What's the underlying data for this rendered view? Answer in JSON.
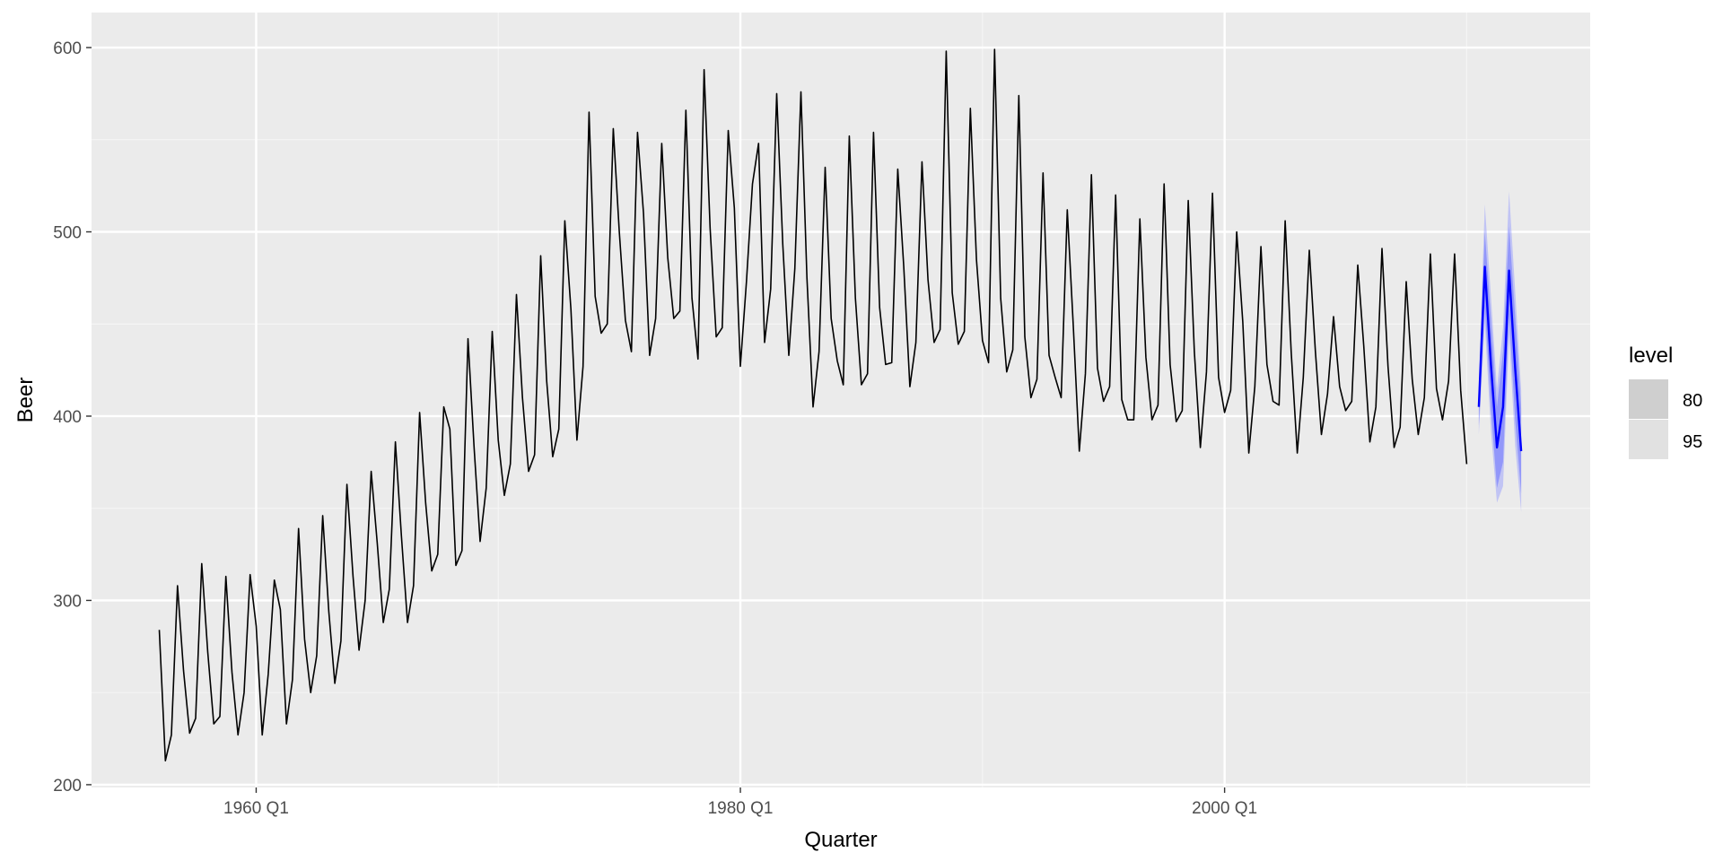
{
  "chart_data": {
    "type": "line",
    "xlabel": "Quarter",
    "ylabel": "Beer",
    "x_tick_labels": [
      "1960 Q1",
      "1980 Q1",
      "2000 Q1"
    ],
    "x_ticks": [
      1960,
      1980,
      2000
    ],
    "y_tick_labels": [
      "200",
      "300",
      "400",
      "500",
      "600"
    ],
    "y_ticks": [
      200,
      300,
      400,
      500,
      600
    ],
    "xlim": [
      1953.2,
      2015.1
    ],
    "ylim": [
      198.5,
      619
    ],
    "grid": true,
    "legend": {
      "title": "level",
      "placement": "right",
      "entries": [
        {
          "label": "80",
          "color": "#cfcfcf"
        },
        {
          "label": "95",
          "color": "#e1e1e1"
        }
      ]
    },
    "series": [
      {
        "color": "#000000",
        "x_start": 1956.0,
        "step": 0.25,
        "values": [
          284,
          213,
          227,
          308,
          262,
          228,
          236,
          320,
          272,
          233,
          237,
          313,
          261,
          227,
          250,
          314,
          286,
          227,
          260,
          311,
          295,
          233,
          257,
          339,
          279,
          250,
          270,
          346,
          294,
          255,
          278,
          363,
          313,
          273,
          300,
          370,
          331,
          288,
          306,
          386,
          335,
          288,
          308,
          402,
          353,
          316,
          325,
          405,
          393,
          319,
          327,
          442,
          383,
          332,
          361,
          446,
          387,
          357,
          374,
          466,
          410,
          370,
          379,
          487,
          419,
          378,
          393,
          506,
          458,
          387,
          427,
          565,
          465,
          445,
          450,
          556,
          500,
          452,
          435,
          554,
          510,
          433,
          453,
          548,
          486,
          453,
          457,
          566,
          464,
          431,
          588,
          502,
          443,
          448,
          555,
          513,
          427,
          473,
          526,
          548,
          440,
          469,
          575,
          493,
          433,
          480,
          576,
          475,
          405,
          435,
          535,
          453,
          430,
          417,
          552,
          464,
          417,
          423,
          554,
          459,
          428,
          429,
          534,
          481,
          416,
          440,
          538,
          474,
          440,
          447,
          598,
          467,
          439,
          446,
          567,
          485,
          441,
          429,
          599,
          464,
          424,
          436,
          574,
          443,
          410,
          420,
          532,
          433,
          421,
          410,
          512,
          449,
          381,
          423,
          531,
          426,
          408,
          416,
          520,
          409,
          398,
          398,
          507,
          432,
          398,
          406,
          526,
          428,
          397,
          403,
          517,
          435,
          383,
          424,
          521,
          421,
          402,
          414,
          500,
          451,
          380,
          416,
          492,
          428,
          408,
          406,
          506,
          435,
          380,
          421,
          490,
          435,
          390,
          412,
          454,
          416,
          403,
          408,
          482,
          438,
          386,
          405,
          491,
          427,
          383,
          394,
          473,
          420,
          390,
          410,
          488,
          415,
          398,
          419,
          488,
          414,
          374
        ]
      },
      {
        "name": "forecast",
        "color": "#0000ff",
        "x_start": 2010.5,
        "step": 0.25,
        "values": [
          405,
          481,
          428,
          383,
          405,
          479,
          426,
          381
        ],
        "lower80": [
          395,
          460,
          404,
          361,
          375,
          455,
          398,
          358
        ],
        "upper80": [
          415,
          500,
          452,
          405,
          435,
          503,
          454,
          404
        ],
        "lower95": [
          390,
          450,
          392,
          353,
          362,
          444,
          384,
          348
        ],
        "upper95": [
          420,
          515,
          465,
          415,
          448,
          522,
          468,
          414
        ]
      }
    ]
  }
}
